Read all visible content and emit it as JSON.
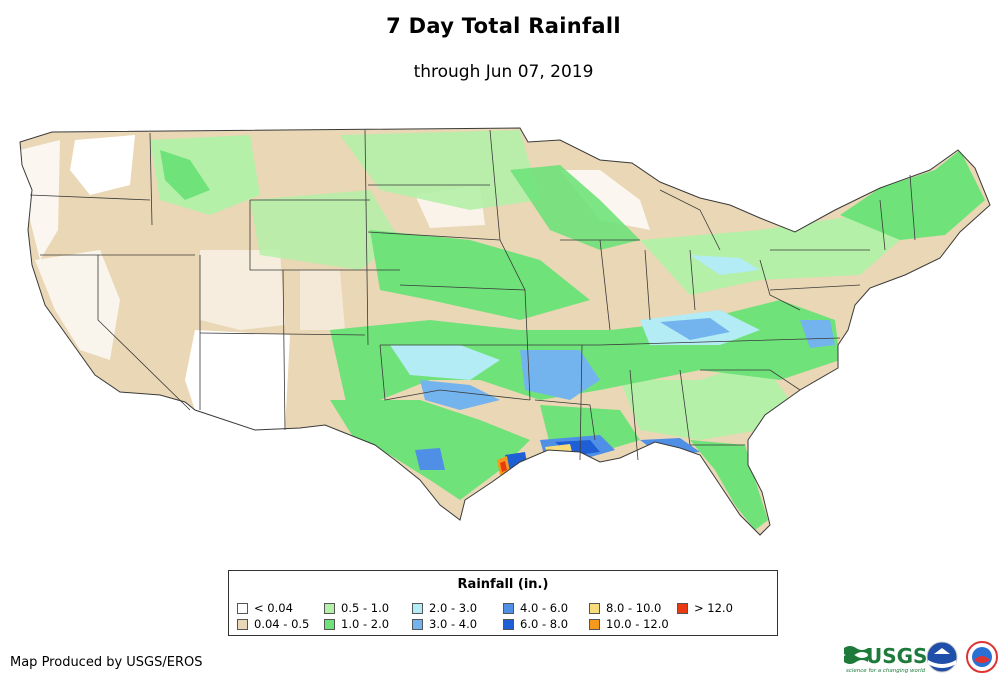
{
  "header": {
    "title": "7 Day Total Rainfall",
    "subtitle": "through Jun 07, 2019"
  },
  "legend": {
    "title": "Rainfall (in.)",
    "items": [
      {
        "label": "< 0.04",
        "color": "#ffffff"
      },
      {
        "label": "0.04 - 0.5",
        "color": "#ead7b5"
      },
      {
        "label": "0.5 - 1.0",
        "color": "#b4f0a8"
      },
      {
        "label": "1.0 - 2.0",
        "color": "#6fe27a"
      },
      {
        "label": "2.0 - 3.0",
        "color": "#b3ecf4"
      },
      {
        "label": "3.0 - 4.0",
        "color": "#74b4ee"
      },
      {
        "label": "4.0 - 6.0",
        "color": "#4f90e6"
      },
      {
        "label": "6.0 - 8.0",
        "color": "#1f5fd6"
      },
      {
        "label": "8.0 - 10.0",
        "color": "#f8dc7a"
      },
      {
        "label": "10.0 - 12.0",
        "color": "#f59a1c"
      },
      {
        "label": "> 12.0",
        "color": "#e93a12"
      }
    ]
  },
  "footer": {
    "credit": "Map Produced by USGS/EROS",
    "usgs_logo_text": "USGS",
    "usgs_tagline": "science for a changing world"
  },
  "colors": {
    "state_border": "#3a3a3a"
  }
}
